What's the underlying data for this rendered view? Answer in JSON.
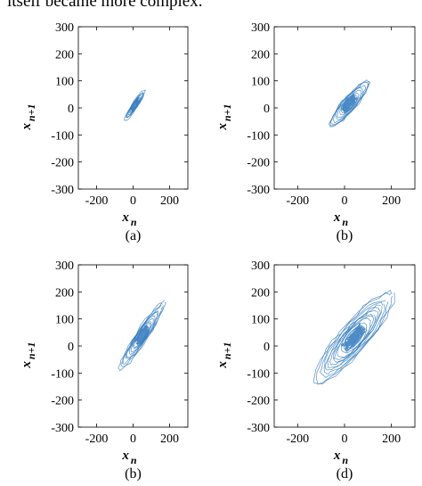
{
  "top_caption": "itself became more complex.",
  "chart_data": [
    {
      "type": "scatter",
      "panel_label": "(a)",
      "xlabel": "x_n",
      "ylabel": "x_{n+1}",
      "xlim": [
        -300,
        300
      ],
      "ylim": [
        -300,
        300
      ],
      "xticks": [
        -200,
        0,
        200
      ],
      "yticks": [
        300,
        200,
        100,
        0,
        -100,
        -200,
        -300
      ],
      "grid": false,
      "color": "#3a7fc0",
      "spread": 80,
      "width": 14,
      "center": [
        10,
        10
      ],
      "rings": 10,
      "blob": 30
    },
    {
      "type": "scatter",
      "panel_label": "(b)",
      "xlabel": "x_n",
      "ylabel": "x_{n+1}",
      "xlim": [
        -300,
        300
      ],
      "ylim": [
        -300,
        300
      ],
      "xticks": [
        -200,
        0,
        200
      ],
      "yticks": [
        300,
        200,
        100,
        0,
        -100,
        -200,
        -300
      ],
      "grid": false,
      "color": "#3a7fc0",
      "spread": 130,
      "width": 30,
      "center": [
        20,
        15
      ],
      "rings": 10,
      "blob": 40
    },
    {
      "type": "scatter",
      "panel_label": "(b)",
      "xlabel": "x_n",
      "ylabel": "x_{n+1}",
      "xlim": [
        -300,
        300
      ],
      "ylim": [
        -300,
        300
      ],
      "xticks": [
        -200,
        0,
        200
      ],
      "yticks": [
        300,
        200,
        100,
        0,
        -100,
        -200,
        -300
      ],
      "grid": false,
      "color": "#3a7fc0",
      "spread": 180,
      "width": 30,
      "center": [
        50,
        40
      ],
      "rings": 11,
      "blob": 45
    },
    {
      "type": "scatter",
      "panel_label": "(d)",
      "xlabel": "x_n",
      "ylabel": "x_{n+1}",
      "xlim": [
        -300,
        300
      ],
      "ylim": [
        -300,
        300
      ],
      "xticks": [
        -200,
        0,
        200
      ],
      "yticks": [
        300,
        200,
        100,
        0,
        -100,
        -200,
        -300
      ],
      "grid": false,
      "color": "#3a7fc0",
      "spread": 250,
      "width": 55,
      "center": [
        40,
        30
      ],
      "rings": 13,
      "blob": 60
    }
  ]
}
